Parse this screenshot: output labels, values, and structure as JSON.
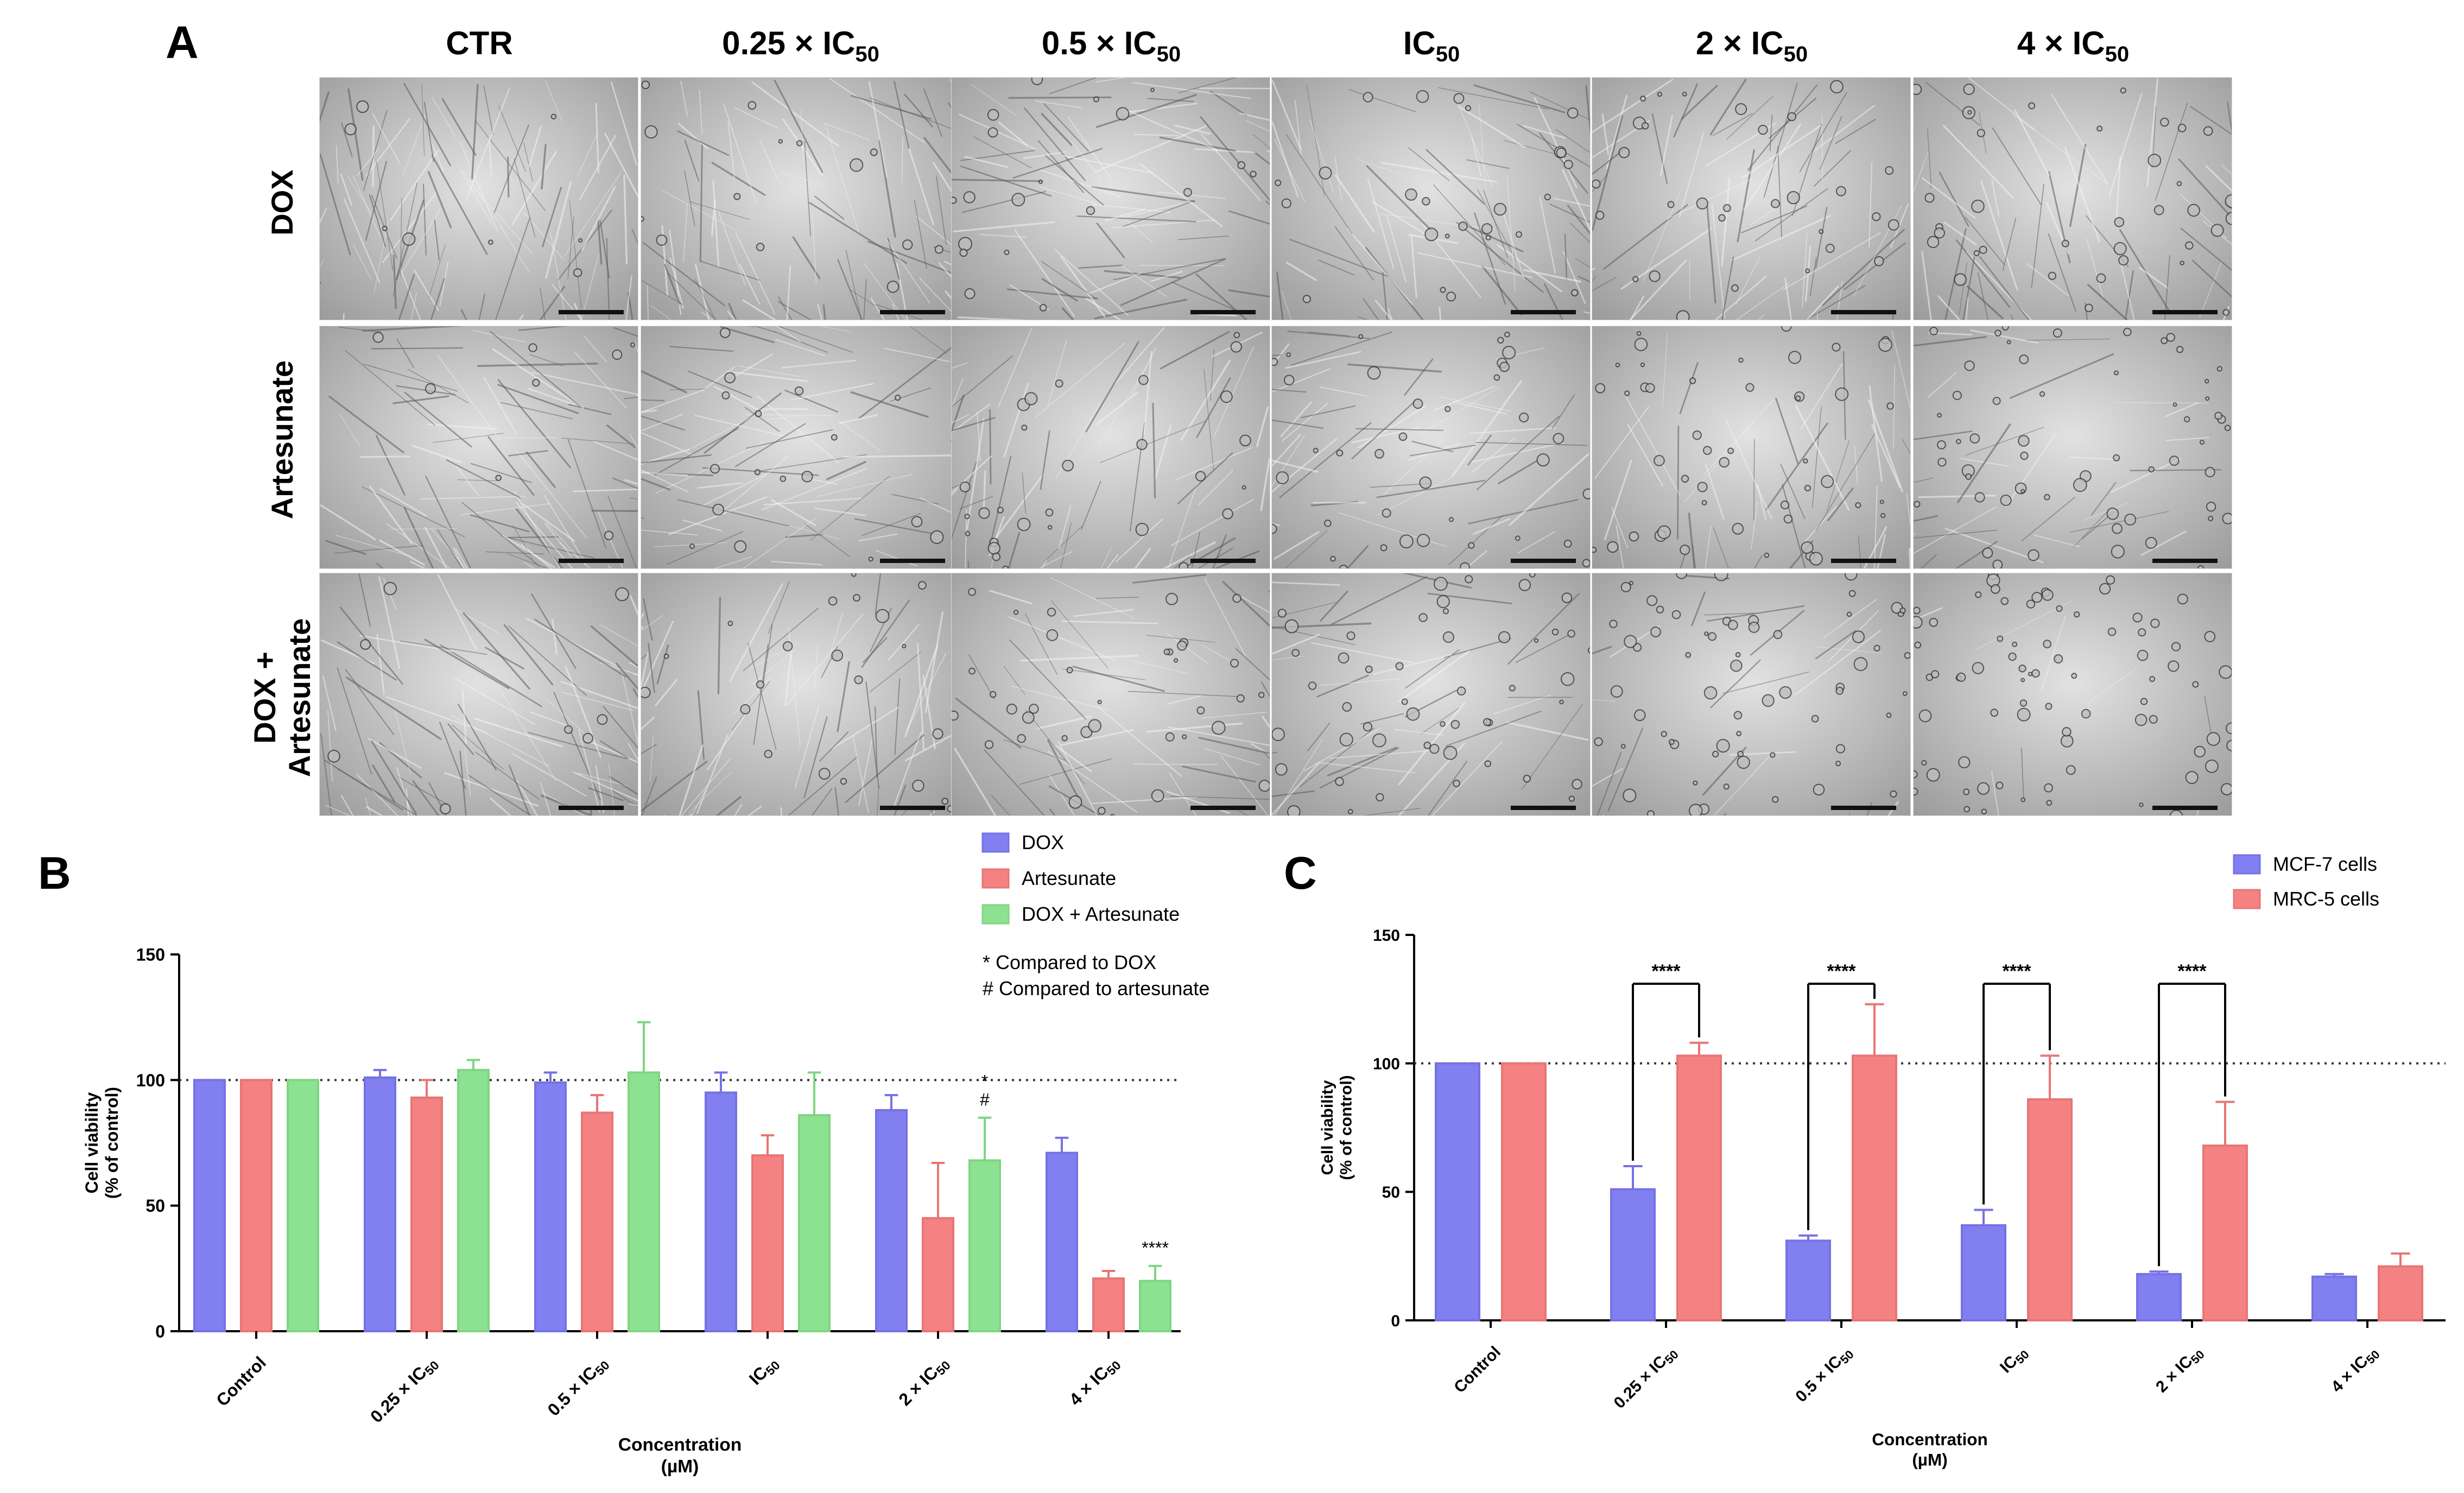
{
  "panel_labels": {
    "a": "A",
    "b": "B",
    "c": "C"
  },
  "micrographs": {
    "columns": [
      "CTR",
      "0.25 × IC",
      "0.5 × IC",
      "IC",
      "2 × IC",
      "4 × IC"
    ],
    "subscript": "50",
    "rows": [
      "DOX",
      "Artesunate",
      "DOX + Artesunate"
    ],
    "row_lines": [
      [
        "DOX"
      ],
      [
        "Artesunate"
      ],
      [
        "DOX +",
        "Artesunate"
      ]
    ]
  },
  "chart_data": [
    {
      "panel": "B",
      "type": "bar",
      "categories": [
        "Control",
        "0.25 × IC50",
        "0.5 × IC50",
        "IC50",
        "2 × IC50",
        "4 × IC50"
      ],
      "series": [
        {
          "name": "DOX",
          "color": "#7b78f0",
          "values": [
            100,
            101,
            99,
            95,
            88,
            71
          ],
          "errors": [
            0,
            3,
            4,
            8,
            6,
            6
          ]
        },
        {
          "name": "Artesunate",
          "color": "#f47b7b",
          "values": [
            100,
            93,
            87,
            70,
            45,
            21
          ],
          "errors": [
            0,
            7,
            7,
            8,
            22,
            3
          ]
        },
        {
          "name": "DOX + Artesunate",
          "color": "#86e08a",
          "values": [
            100,
            104,
            103,
            86,
            68,
            20
          ],
          "errors": [
            0,
            4,
            20,
            17,
            17,
            6
          ]
        }
      ],
      "annotations": [
        {
          "category": "2 × IC50",
          "series": "DOX + Artesunate",
          "lines": [
            "*",
            "#"
          ]
        },
        {
          "category": "4 × IC50",
          "series": "DOX + Artesunate",
          "lines": [
            "****"
          ]
        }
      ],
      "legend_notes": [
        "* Compared to DOX",
        "# Compared to artesunate"
      ],
      "ylabel": [
        "Cell viability",
        "(% of control)"
      ],
      "xlabel": [
        "Concentration",
        "(µM)"
      ],
      "ylim": [
        0,
        150
      ],
      "yticks": [
        0,
        50,
        100,
        150
      ],
      "reference_line": 100,
      "legend_position": "top-right"
    },
    {
      "panel": "C",
      "type": "bar",
      "categories": [
        "Control",
        "0.25 × IC50",
        "0.5 × IC50",
        "IC50",
        "2 × IC50",
        "4 × IC50"
      ],
      "series": [
        {
          "name": "MCF-7 cells",
          "color": "#7b78f0",
          "values": [
            100,
            51,
            31,
            37,
            18,
            17
          ],
          "errors": [
            0,
            9,
            2,
            6,
            1,
            1
          ]
        },
        {
          "name": "MRC-5 cells",
          "color": "#f47b7b",
          "values": [
            100,
            103,
            103,
            86,
            68,
            21
          ],
          "errors": [
            0,
            5,
            20,
            17,
            17,
            5
          ]
        }
      ],
      "significance": [
        {
          "category": "0.25 × IC50",
          "label": "****"
        },
        {
          "category": "0.5 × IC50",
          "label": "****"
        },
        {
          "category": "IC50",
          "label": "****"
        },
        {
          "category": "2 × IC50",
          "label": "****"
        }
      ],
      "ylabel": [
        "Cell viability",
        "(% of control)"
      ],
      "xlabel": [
        "Concentration",
        "(µM)"
      ],
      "ylim": [
        0,
        150
      ],
      "yticks": [
        0,
        50,
        100,
        150
      ],
      "reference_line": 100,
      "legend_position": "top-right"
    }
  ]
}
